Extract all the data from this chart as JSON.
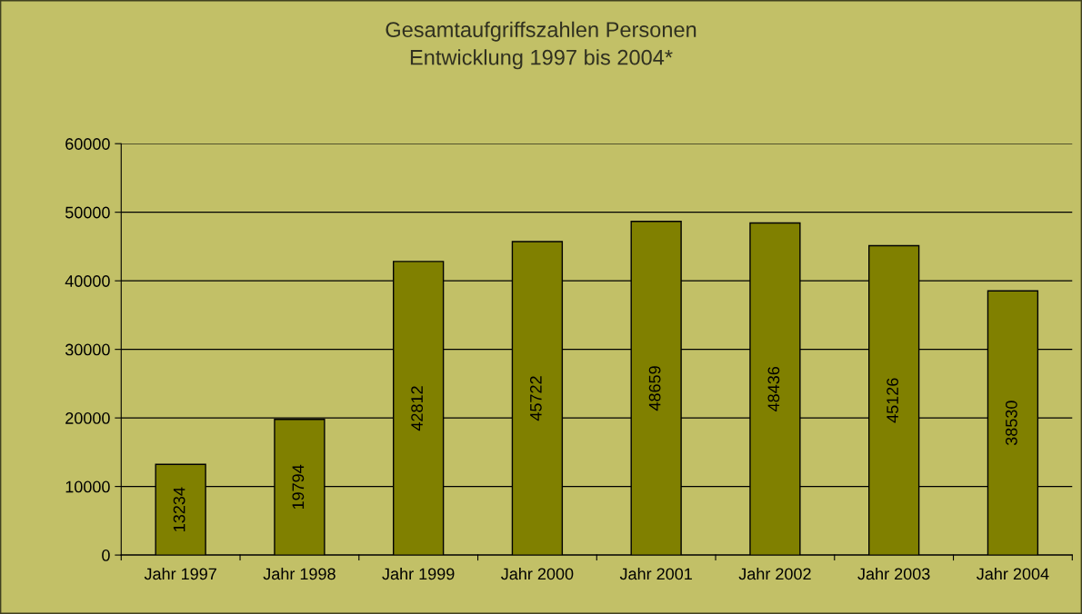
{
  "chart_data": {
    "type": "bar",
    "title": "Gesamtaufgriffszahlen Personen\nEntwicklung 1997 bis 2004*",
    "categories": [
      "Jahr 1997",
      "Jahr 1998",
      "Jahr 1999",
      "Jahr 2000",
      "Jahr 2001",
      "Jahr 2002",
      "Jahr 2003",
      "Jahr 2004"
    ],
    "values": [
      13234,
      19794,
      42812,
      45722,
      48659,
      48436,
      45126,
      38530
    ],
    "color": "#808000",
    "ylim": [
      0,
      60000
    ],
    "yticks": [
      0,
      10000,
      20000,
      30000,
      40000,
      50000,
      60000
    ],
    "grid": "y",
    "data_labels": true
  }
}
